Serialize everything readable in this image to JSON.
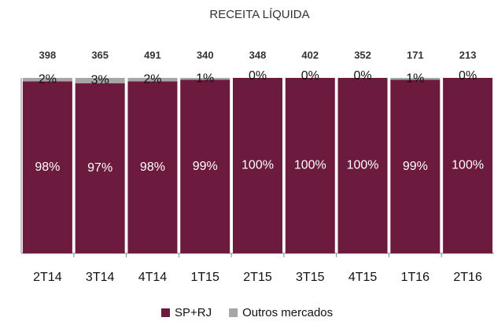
{
  "chart_data": {
    "type": "stacked_bar_percent",
    "title": "RECEITA LÍQUIDA",
    "categories": [
      "2T14",
      "3T14",
      "4T14",
      "1T15",
      "2T15",
      "3T15",
      "4T15",
      "1T16",
      "2T16"
    ],
    "totals": [
      398,
      365,
      491,
      340,
      348,
      402,
      352,
      171,
      213
    ],
    "series": [
      {
        "name": "SP+RJ",
        "color": "#6d1a3f",
        "label_color": "#ffffff",
        "values": [
          98,
          97,
          98,
          99,
          100,
          100,
          100,
          99,
          100
        ],
        "value_labels": [
          "98%",
          "97%",
          "98%",
          "99%",
          "100%",
          "100%",
          "100%",
          "99%",
          "100%"
        ]
      },
      {
        "name": "Outros mercados",
        "color": "#a6a6a6",
        "label_color": "#111111",
        "values": [
          2,
          3,
          2,
          1,
          0,
          0,
          0,
          1,
          0
        ],
        "value_labels": [
          "2%",
          "3%",
          "2%",
          "1%",
          "0%",
          "0%",
          "0%",
          "1%",
          "0%"
        ]
      }
    ],
    "ylim": [
      0,
      100
    ]
  }
}
